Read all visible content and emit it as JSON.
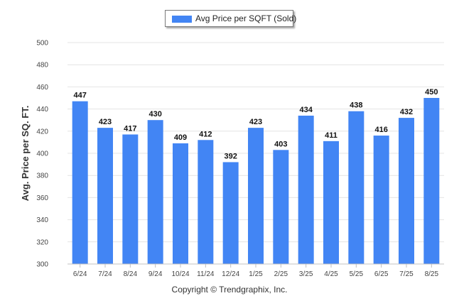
{
  "chart_data": {
    "type": "bar",
    "title": "",
    "xlabel": "",
    "ylabel": "Avg. Price per SQ. FT.",
    "categories": [
      "6/24",
      "7/24",
      "8/24",
      "9/24",
      "10/24",
      "11/24",
      "12/24",
      "1/25",
      "2/25",
      "3/25",
      "4/25",
      "5/25",
      "6/25",
      "7/25",
      "8/25"
    ],
    "series": [
      {
        "name": "Avg Price per SQFT (Sold)",
        "color": "#4285f4",
        "values": [
          447,
          423,
          417,
          430,
          409,
          412,
          392,
          423,
          403,
          434,
          411,
          438,
          416,
          432,
          450
        ]
      }
    ],
    "ylim": [
      300,
      500
    ],
    "yticks": [
      300,
      320,
      340,
      360,
      380,
      400,
      420,
      440,
      460,
      480,
      500
    ],
    "grid": true,
    "legend_position": "top-center"
  },
  "footer": {
    "text": "Copyright © Trendgraphix, Inc."
  }
}
